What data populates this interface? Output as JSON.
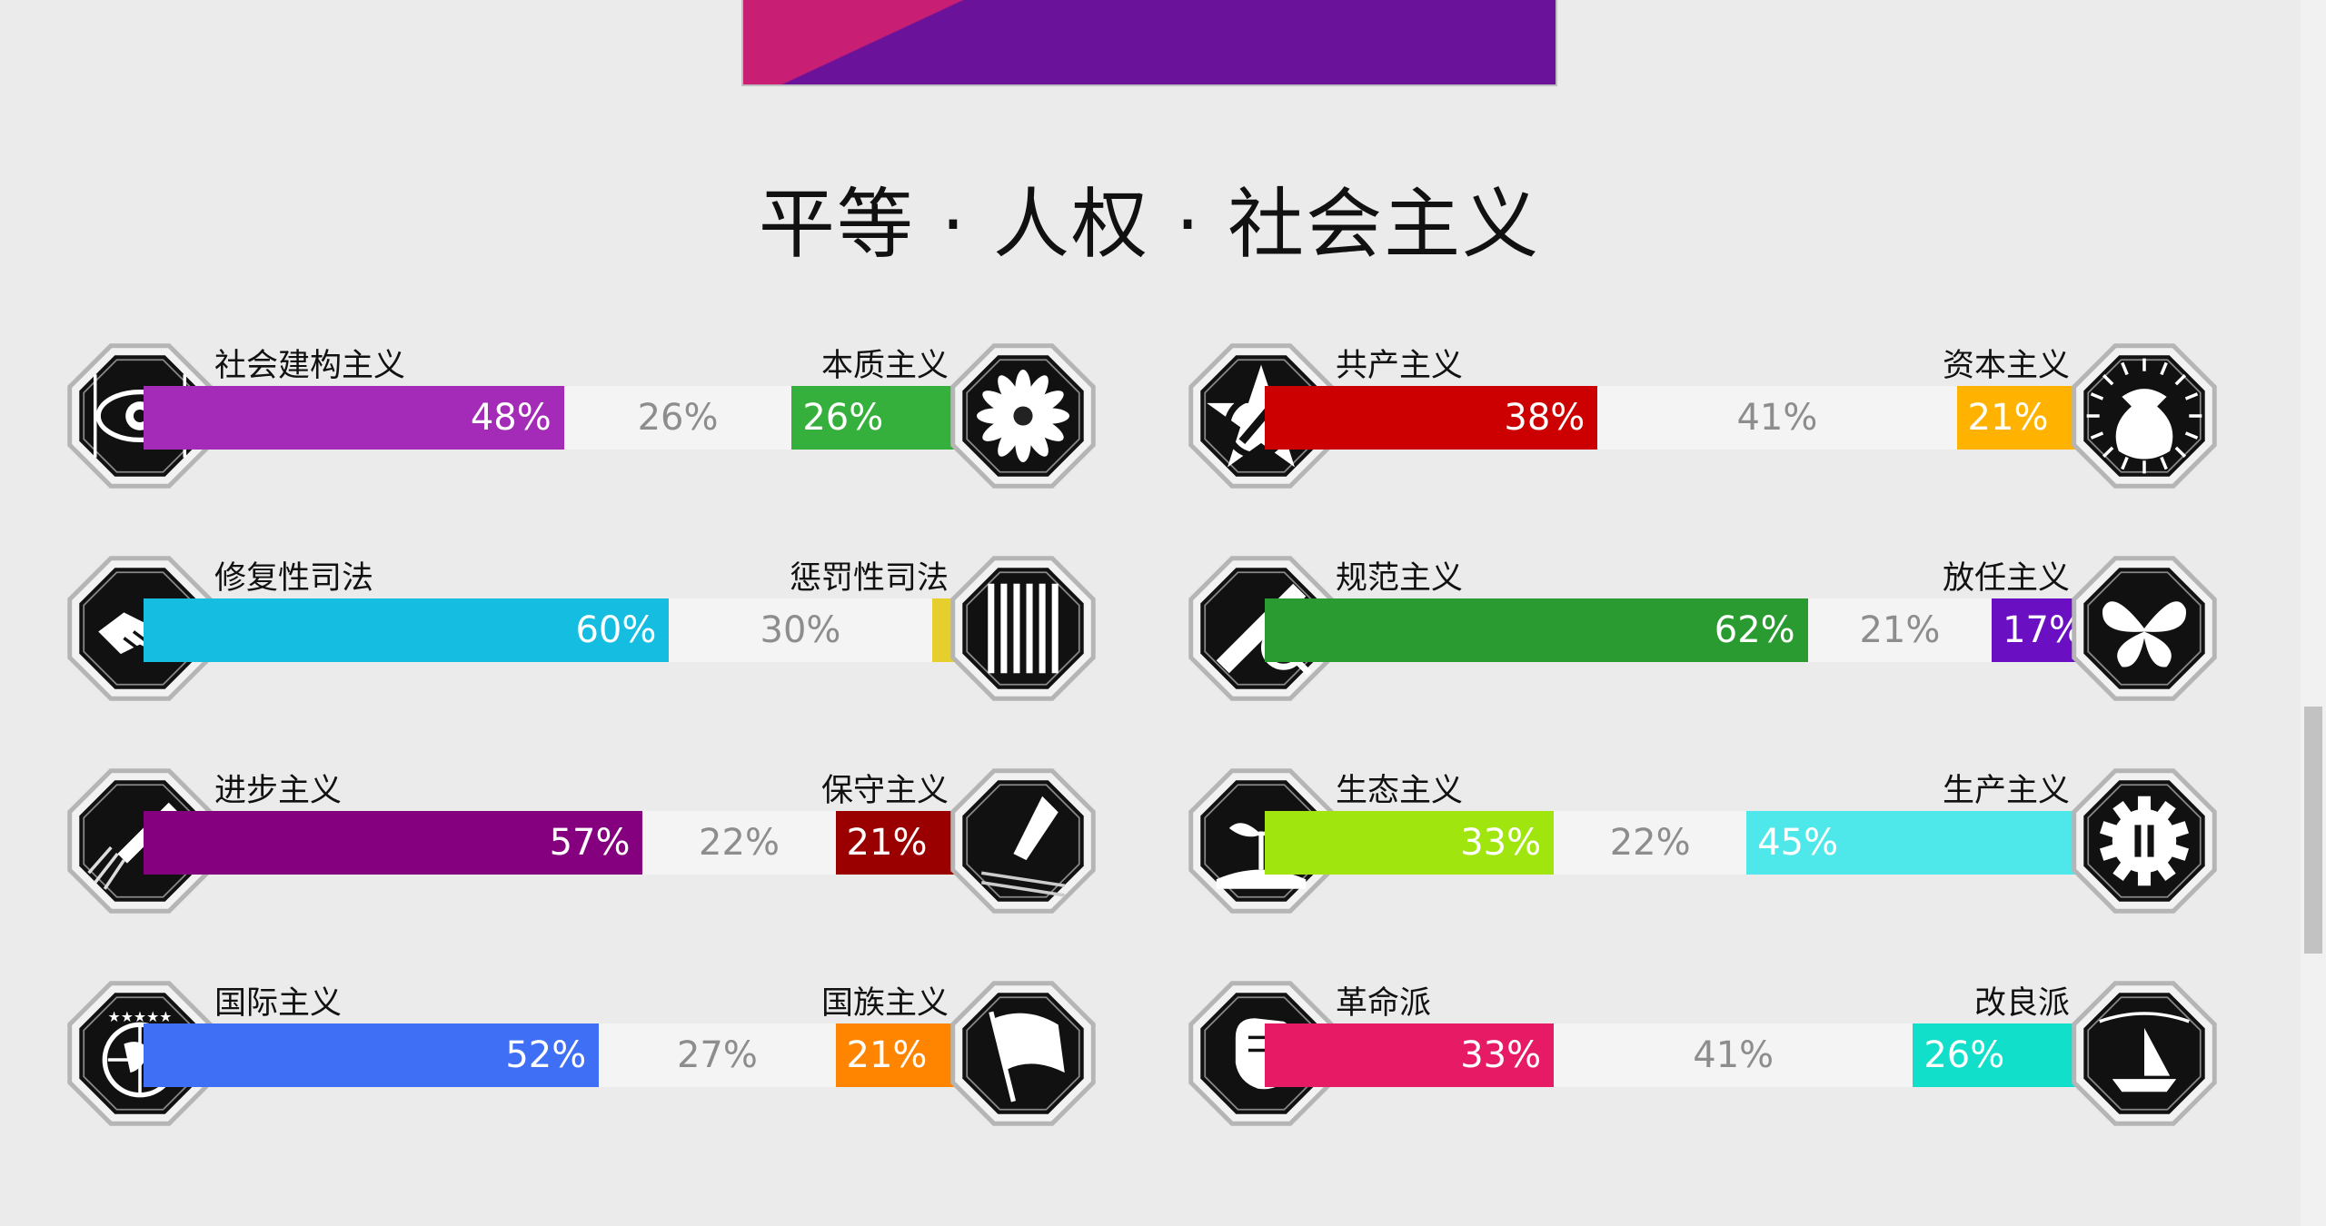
{
  "banner": {
    "colors": [
      "#c81f74",
      "#6a1299"
    ]
  },
  "section": {
    "title": "平等 · 人权 · 社会主义"
  },
  "axes": [
    {
      "left": {
        "name": "社会建构主义",
        "pct": "48%",
        "value": 48,
        "color": "#a32bb7",
        "icon": "eye-icon"
      },
      "mid": {
        "pct": "26%",
        "value": 26
      },
      "right": {
        "name": "本质主义",
        "pct": "26%",
        "value": 26,
        "color": "#36b03c",
        "icon": "flower-icon"
      }
    },
    {
      "left": {
        "name": "修复性司法",
        "pct": "60%",
        "value": 60,
        "color": "#15bee0",
        "icon": "handshake-icon"
      },
      "mid": {
        "pct": "30%",
        "value": 30
      },
      "right": {
        "name": "惩罚性司法",
        "pct": "",
        "value": 10,
        "color": "#e6cf2c",
        "icon": "prison-bars-icon"
      }
    },
    {
      "left": {
        "name": "进步主义",
        "pct": "57%",
        "value": 57,
        "color": "#85007e",
        "icon": "rocket-icon"
      },
      "mid": {
        "pct": "22%",
        "value": 22
      },
      "right": {
        "name": "保守主义",
        "pct": "21%",
        "value": 21,
        "color": "#9b0000",
        "icon": "quill-icon"
      }
    },
    {
      "left": {
        "name": "国际主义",
        "pct": "52%",
        "value": 52,
        "color": "#3f6ff5",
        "icon": "globe-icon"
      },
      "mid": {
        "pct": "27%",
        "value": 27
      },
      "right": {
        "name": "国族主义",
        "pct": "21%",
        "value": 21,
        "color": "#ff8400",
        "icon": "flag-icon"
      }
    },
    {
      "left": {
        "name": "共产主义",
        "pct": "38%",
        "value": 38,
        "color": "#cc0000",
        "icon": "hammer-sickle-icon"
      },
      "mid": {
        "pct": "41%",
        "value": 41
      },
      "right": {
        "name": "资本主义",
        "pct": "21%",
        "value": 21,
        "color": "#ffb300",
        "icon": "money-bag-icon"
      }
    },
    {
      "left": {
        "name": "规范主义",
        "pct": "62%",
        "value": 62,
        "color": "#2a9b31",
        "icon": "ruler-magnifier-icon"
      },
      "mid": {
        "pct": "21%",
        "value": 21
      },
      "right": {
        "name": "放任主义",
        "pct": "17%",
        "value": 17,
        "color": "#6a0fc1",
        "icon": "butterfly-icon"
      }
    },
    {
      "left": {
        "name": "生态主义",
        "pct": "33%",
        "value": 33,
        "color": "#a0e60e",
        "icon": "sprout-icon"
      },
      "mid": {
        "pct": "22%",
        "value": 22
      },
      "right": {
        "name": "生产主义",
        "pct": "45%",
        "value": 45,
        "color": "#4ee8ea",
        "icon": "gear-icon"
      }
    },
    {
      "left": {
        "name": "革命派",
        "pct": "33%",
        "value": 33,
        "color": "#e71b65",
        "icon": "fist-icon"
      },
      "mid": {
        "pct": "41%",
        "value": 41
      },
      "right": {
        "name": "改良派",
        "pct": "26%",
        "value": 26,
        "color": "#12dfc9",
        "icon": "boat-icon"
      }
    }
  ]
}
